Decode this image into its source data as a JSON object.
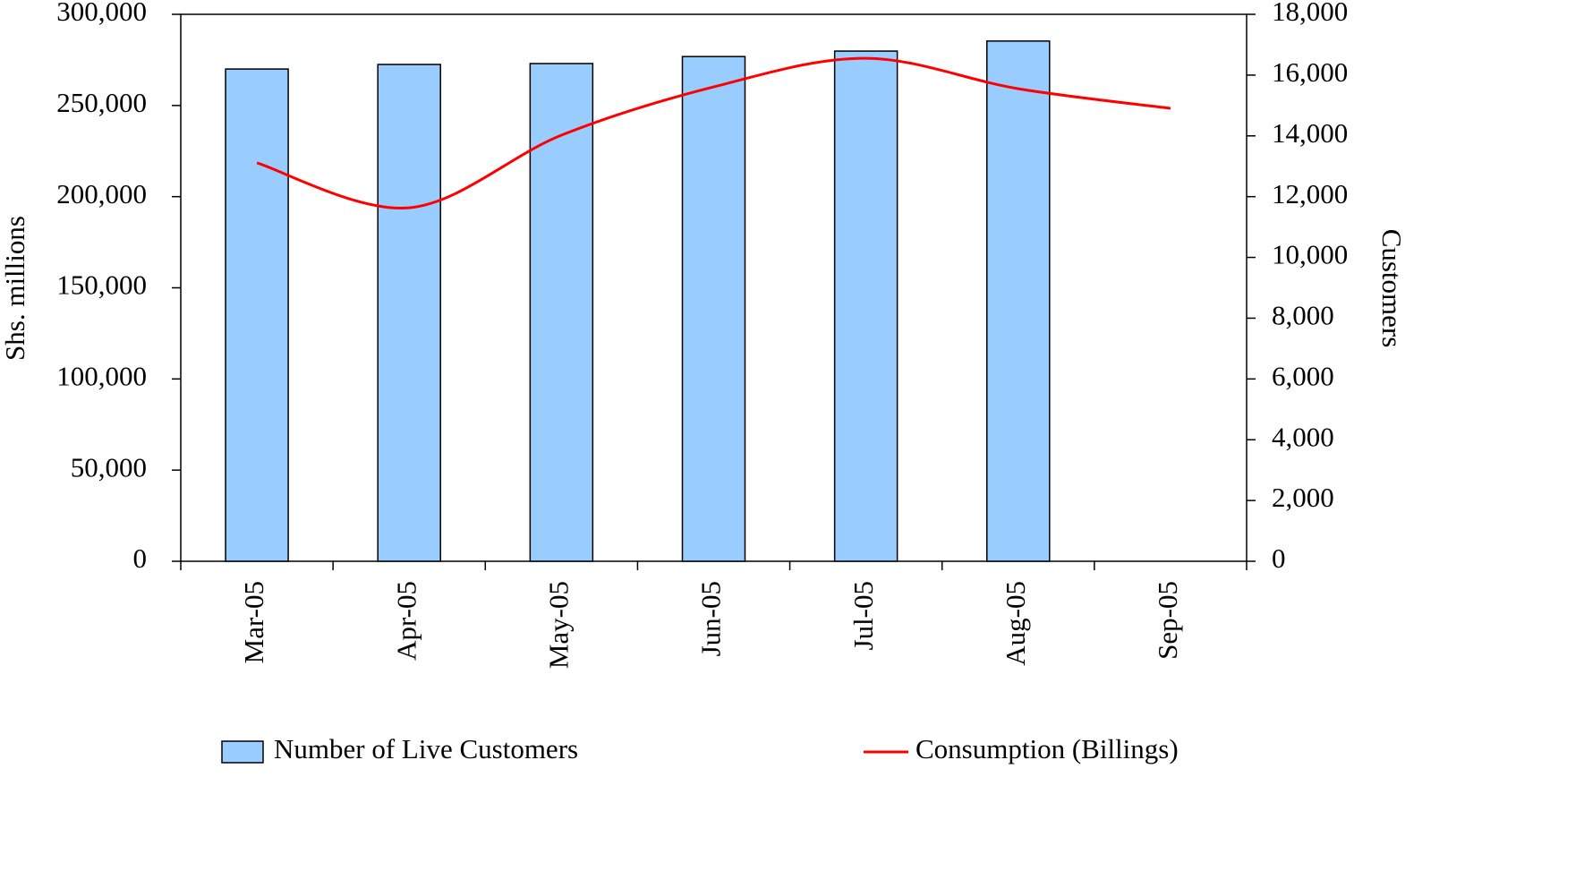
{
  "chart_data": {
    "type": "bar-line",
    "categories": [
      "Mar-05",
      "Apr-05",
      "May-05",
      "Jun-05",
      "Jul-05",
      "Aug-05",
      "Sep-05"
    ],
    "series": [
      {
        "name": "Number of Live Customers",
        "type": "bar",
        "axis": "y2",
        "color": "#99ccff",
        "values": [
          16200,
          16350,
          16380,
          16610,
          16790,
          17120,
          null
        ]
      },
      {
        "name": "Consumption (Billings)",
        "type": "line",
        "color": "#ff0000",
        "values": [
          218500,
          193900,
          233700,
          260200,
          275900,
          259200,
          248400
        ]
      }
    ],
    "ylabel": "Shs. millions",
    "y2label": "Customers",
    "ylim": [
      0,
      300000
    ],
    "yticks": [
      {
        "value": 0,
        "label": "0"
      },
      {
        "value": 50000,
        "label": "50,000"
      },
      {
        "value": 100000,
        "label": "100,000"
      },
      {
        "value": 150000,
        "label": "150,000"
      },
      {
        "value": 200000,
        "label": "200,000"
      },
      {
        "value": 250000,
        "label": "250,000"
      },
      {
        "value": 300000,
        "label": "300,000"
      }
    ],
    "y2lim": [
      0,
      18000
    ],
    "y2ticks": [
      {
        "value": 0,
        "label": "0"
      },
      {
        "value": 2000,
        "label": "2,000"
      },
      {
        "value": 4000,
        "label": "4,000"
      },
      {
        "value": 6000,
        "label": "6,000"
      },
      {
        "value": 8000,
        "label": "8,000"
      },
      {
        "value": 10000,
        "label": "10,000"
      },
      {
        "value": 12000,
        "label": "12,000"
      },
      {
        "value": 14000,
        "label": "14,000"
      },
      {
        "value": 16000,
        "label": "16,000"
      },
      {
        "value": 18000,
        "label": "18,000"
      }
    ],
    "grid": false
  }
}
